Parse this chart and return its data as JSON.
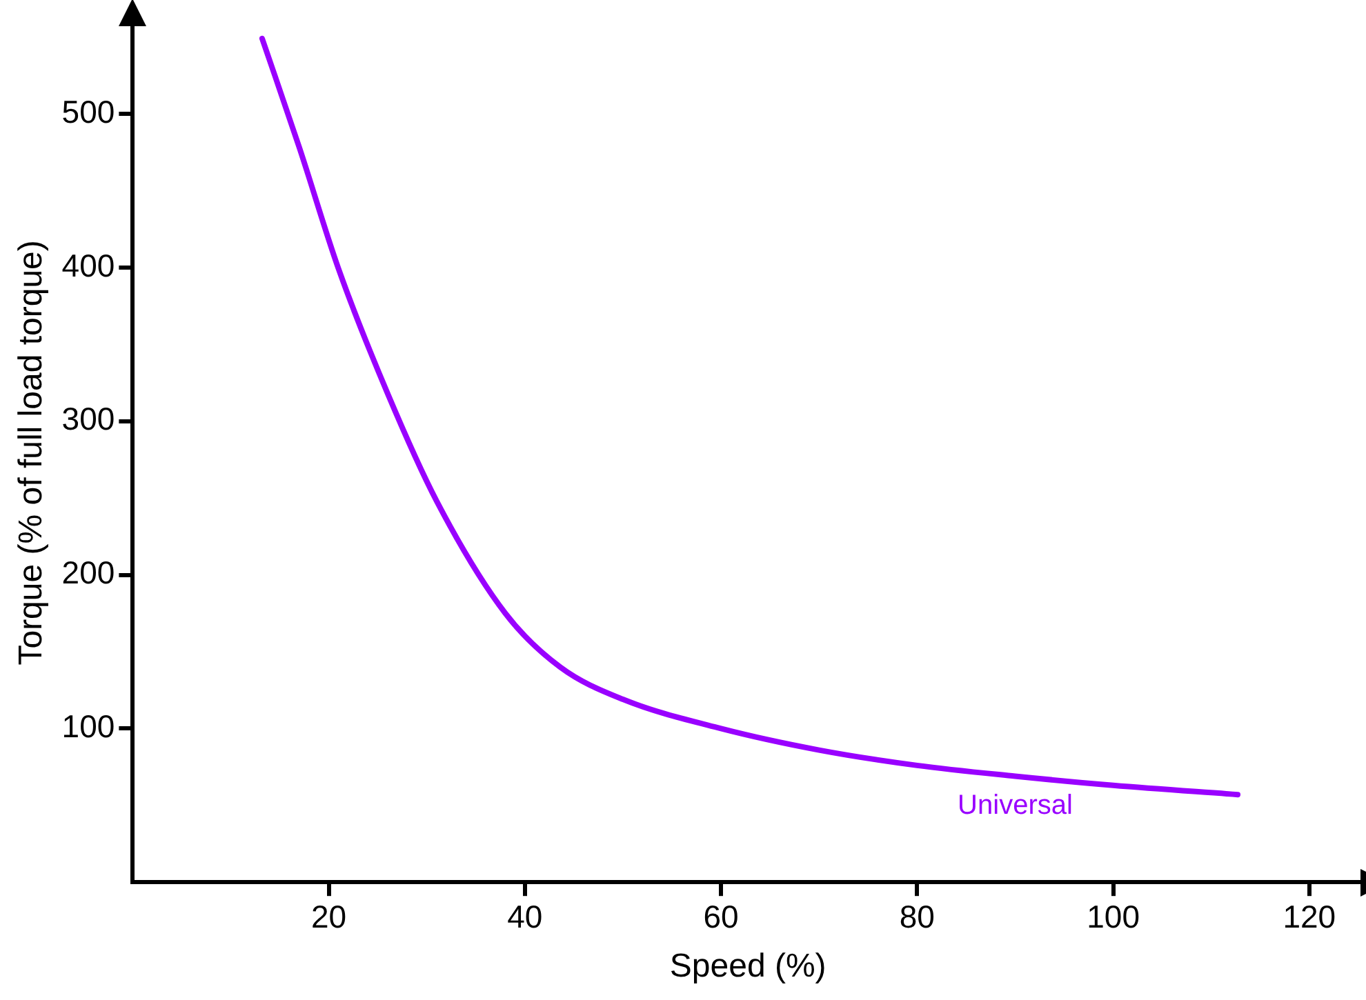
{
  "chart_data": {
    "type": "line",
    "xlabel": "Speed (%)",
    "ylabel": "Torque (% of full load torque)",
    "xlim": [
      0,
      125.5
    ],
    "ylim": [
      0,
      559
    ],
    "xticks": [
      20,
      40,
      60,
      80,
      100,
      120
    ],
    "yticks": [
      100,
      200,
      300,
      400,
      500
    ],
    "grid": false,
    "legend": false,
    "marker": "none",
    "line_style": "solid",
    "series": [
      {
        "name": "Universal",
        "color": "#9900ff",
        "x": [
          13.2,
          17,
          21,
          26,
          31,
          38,
          43.6,
          50,
          60,
          70,
          80,
          90,
          100,
          112.7
        ],
        "values": [
          549,
          478,
          399,
          318,
          248,
          175,
          140,
          119,
          100,
          86,
          76,
          69,
          63,
          57
        ]
      }
    ]
  }
}
